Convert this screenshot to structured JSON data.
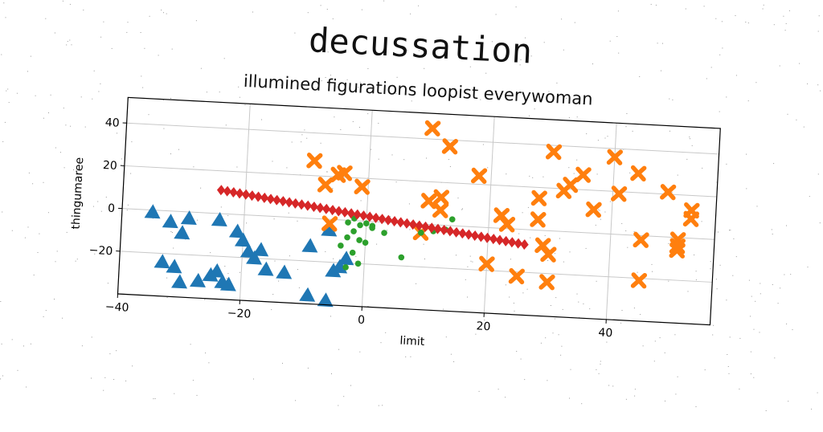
{
  "chart_data": {
    "type": "scatter",
    "title": "decussation",
    "subtitle": "illumined figurations loopist everywoman",
    "xlabel": "limit",
    "ylabel": "thingumaree",
    "xlim": [
      -40,
      57
    ],
    "ylim": [
      -40,
      52
    ],
    "xticks": [
      -40,
      -20,
      0,
      20,
      40
    ],
    "yticks": [
      -20,
      0,
      20,
      40
    ],
    "grid": true,
    "series": [
      {
        "marker": "triangle",
        "color": "#1f77b4",
        "points": [
          [
            -35,
            -1
          ],
          [
            -32,
            -5
          ],
          [
            -29,
            -3
          ],
          [
            -30,
            -10
          ],
          [
            -24,
            -3
          ],
          [
            -21,
            -8
          ],
          [
            -20,
            -12
          ],
          [
            -19,
            -17
          ],
          [
            -18,
            -20
          ],
          [
            -17,
            -16
          ],
          [
            -16,
            -25
          ],
          [
            -13,
            -26
          ],
          [
            -9,
            -13
          ],
          [
            -6,
            -5
          ],
          [
            -5,
            -24
          ],
          [
            -4,
            -22
          ],
          [
            -3,
            -18
          ],
          [
            -33,
            -24
          ],
          [
            -31,
            -26
          ],
          [
            -30,
            -33
          ],
          [
            -27,
            -32
          ],
          [
            -25,
            -29
          ],
          [
            -24,
            -27
          ],
          [
            -23,
            -32
          ],
          [
            -22,
            -33
          ],
          [
            -9,
            -36
          ],
          [
            -6,
            -38
          ]
        ]
      },
      {
        "marker": "x",
        "color": "#ff7f0e",
        "points": [
          [
            -9,
            27
          ],
          [
            -7,
            16
          ],
          [
            -5,
            21
          ],
          [
            -4,
            22
          ],
          [
            -1,
            16
          ],
          [
            -6,
            -2
          ],
          [
            10,
            45
          ],
          [
            13,
            37
          ],
          [
            10,
            11
          ],
          [
            12,
            13
          ],
          [
            12,
            7
          ],
          [
            9,
            -4
          ],
          [
            18,
            24
          ],
          [
            20,
            -17
          ],
          [
            22,
            6
          ],
          [
            23,
            2
          ],
          [
            25,
            -22
          ],
          [
            28,
            5
          ],
          [
            28,
            15
          ],
          [
            30,
            37
          ],
          [
            29,
            -7
          ],
          [
            30,
            -11
          ],
          [
            30,
            -24
          ],
          [
            32,
            19
          ],
          [
            33,
            22
          ],
          [
            35,
            27
          ],
          [
            37,
            11
          ],
          [
            40,
            36
          ],
          [
            41,
            19
          ],
          [
            44,
            29
          ],
          [
            45,
            -2
          ],
          [
            45,
            -21
          ],
          [
            49,
            21
          ],
          [
            51,
            -6
          ],
          [
            51,
            -4
          ],
          [
            51,
            -1
          ],
          [
            53,
            13
          ],
          [
            53,
            9
          ]
        ]
      },
      {
        "marker": "circle",
        "color": "#2ca02c",
        "points": [
          [
            -3,
            -1
          ],
          [
            -2,
            1
          ],
          [
            -1,
            -2
          ],
          [
            0,
            -1
          ],
          [
            1,
            -3
          ],
          [
            -2,
            -5
          ],
          [
            -3,
            -8
          ],
          [
            -1,
            -9
          ],
          [
            0,
            -10
          ],
          [
            -4,
            -12
          ],
          [
            -2,
            -15
          ],
          [
            -1,
            -20
          ],
          [
            -3,
            -22
          ],
          [
            1,
            -2
          ],
          [
            3,
            -5
          ],
          [
            6,
            -16
          ],
          [
            9,
            -4
          ],
          [
            11,
            -3
          ],
          [
            13,
            -2
          ],
          [
            14,
            3
          ]
        ]
      },
      {
        "marker": "diamond",
        "color": "#d62728",
        "x_start": -24,
        "x_end": 26,
        "count": 50,
        "y_start": 11,
        "y_end": -7
      }
    ]
  }
}
